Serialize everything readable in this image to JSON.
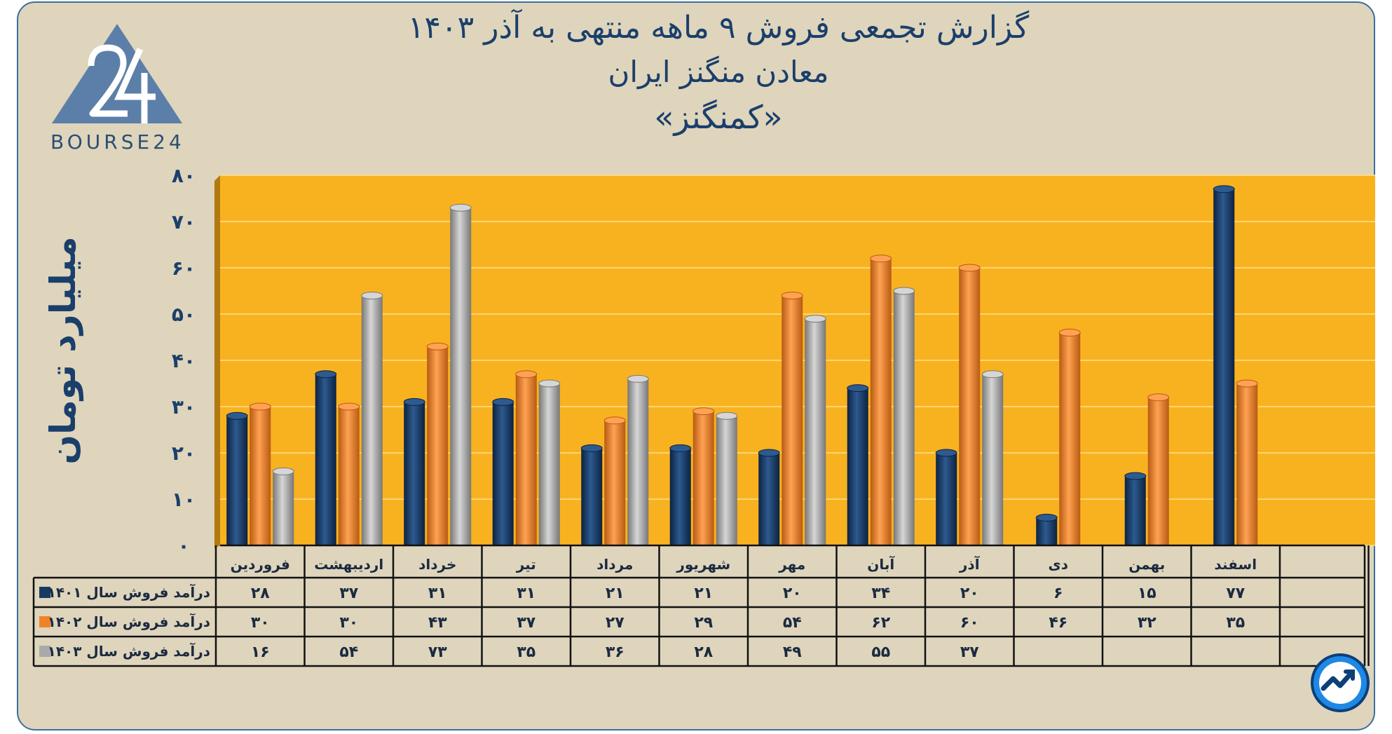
{
  "header": {
    "title_line1": "گزارش تجمعی فروش ۹ ماهه منتهی به آذر ۱۴۰۳",
    "title_line2": "معادن منگنز ایران",
    "title_line3": "«کمنگنز»"
  },
  "logo": {
    "text": "BOURSE24",
    "icon": "bourse24-triangle-logo"
  },
  "badge": {
    "icon": "trend-up-icon"
  },
  "colors": {
    "frame_bg": "#ded5bc",
    "plot_bg": "#f8b220",
    "series_1401": "#173a63",
    "series_1402": "#f0832a",
    "series_1403": "#a9a9a9",
    "title": "#1b3f6b"
  },
  "chart_data": {
    "type": "bar",
    "title": "گزارش تجمعی فروش ۹ ماهه منتهی به آذر ۱۴۰۳",
    "subtitle": "معادن منگنز ایران «کمنگنز»",
    "ylabel": "میلیارد تومان",
    "ylim": [
      0,
      80
    ],
    "yticks": [
      "۰",
      "۱۰",
      "۲۰",
      "۳۰",
      "۴۰",
      "۵۰",
      "۶۰",
      "۷۰",
      "۸۰"
    ],
    "grid": true,
    "categories": [
      "فروردین",
      "اردیبهشت",
      "خرداد",
      "تیر",
      "مرداد",
      "شهریور",
      "مهر",
      "آبان",
      "آذر",
      "دی",
      "بهمن",
      "اسفند"
    ],
    "series": [
      {
        "name": "درآمد فروش سال ۱۴۰۱",
        "values": [
          28,
          37,
          31,
          31,
          21,
          21,
          20,
          34,
          20,
          6,
          15,
          77
        ],
        "labels": [
          "۲۸",
          "۳۷",
          "۳۱",
          "۳۱",
          "۲۱",
          "۲۱",
          "۲۰",
          "۳۴",
          "۲۰",
          "۶",
          "۱۵",
          "۷۷"
        ]
      },
      {
        "name": "درآمد فروش سال ۱۴۰۲",
        "values": [
          30,
          30,
          43,
          37,
          27,
          29,
          54,
          62,
          60,
          46,
          32,
          35
        ],
        "labels": [
          "۳۰",
          "۳۰",
          "۴۳",
          "۳۷",
          "۲۷",
          "۲۹",
          "۵۴",
          "۶۲",
          "۶۰",
          "۴۶",
          "۳۲",
          "۳۵"
        ]
      },
      {
        "name": "درآمد فروش سال ۱۴۰۳",
        "values": [
          16,
          54,
          73,
          35,
          36,
          28,
          49,
          55,
          37,
          null,
          null,
          null
        ],
        "labels": [
          "۱۶",
          "۵۴",
          "۷۳",
          "۳۵",
          "۳۶",
          "۲۸",
          "۴۹",
          "۵۵",
          "۳۷",
          "",
          "",
          ""
        ]
      }
    ]
  }
}
